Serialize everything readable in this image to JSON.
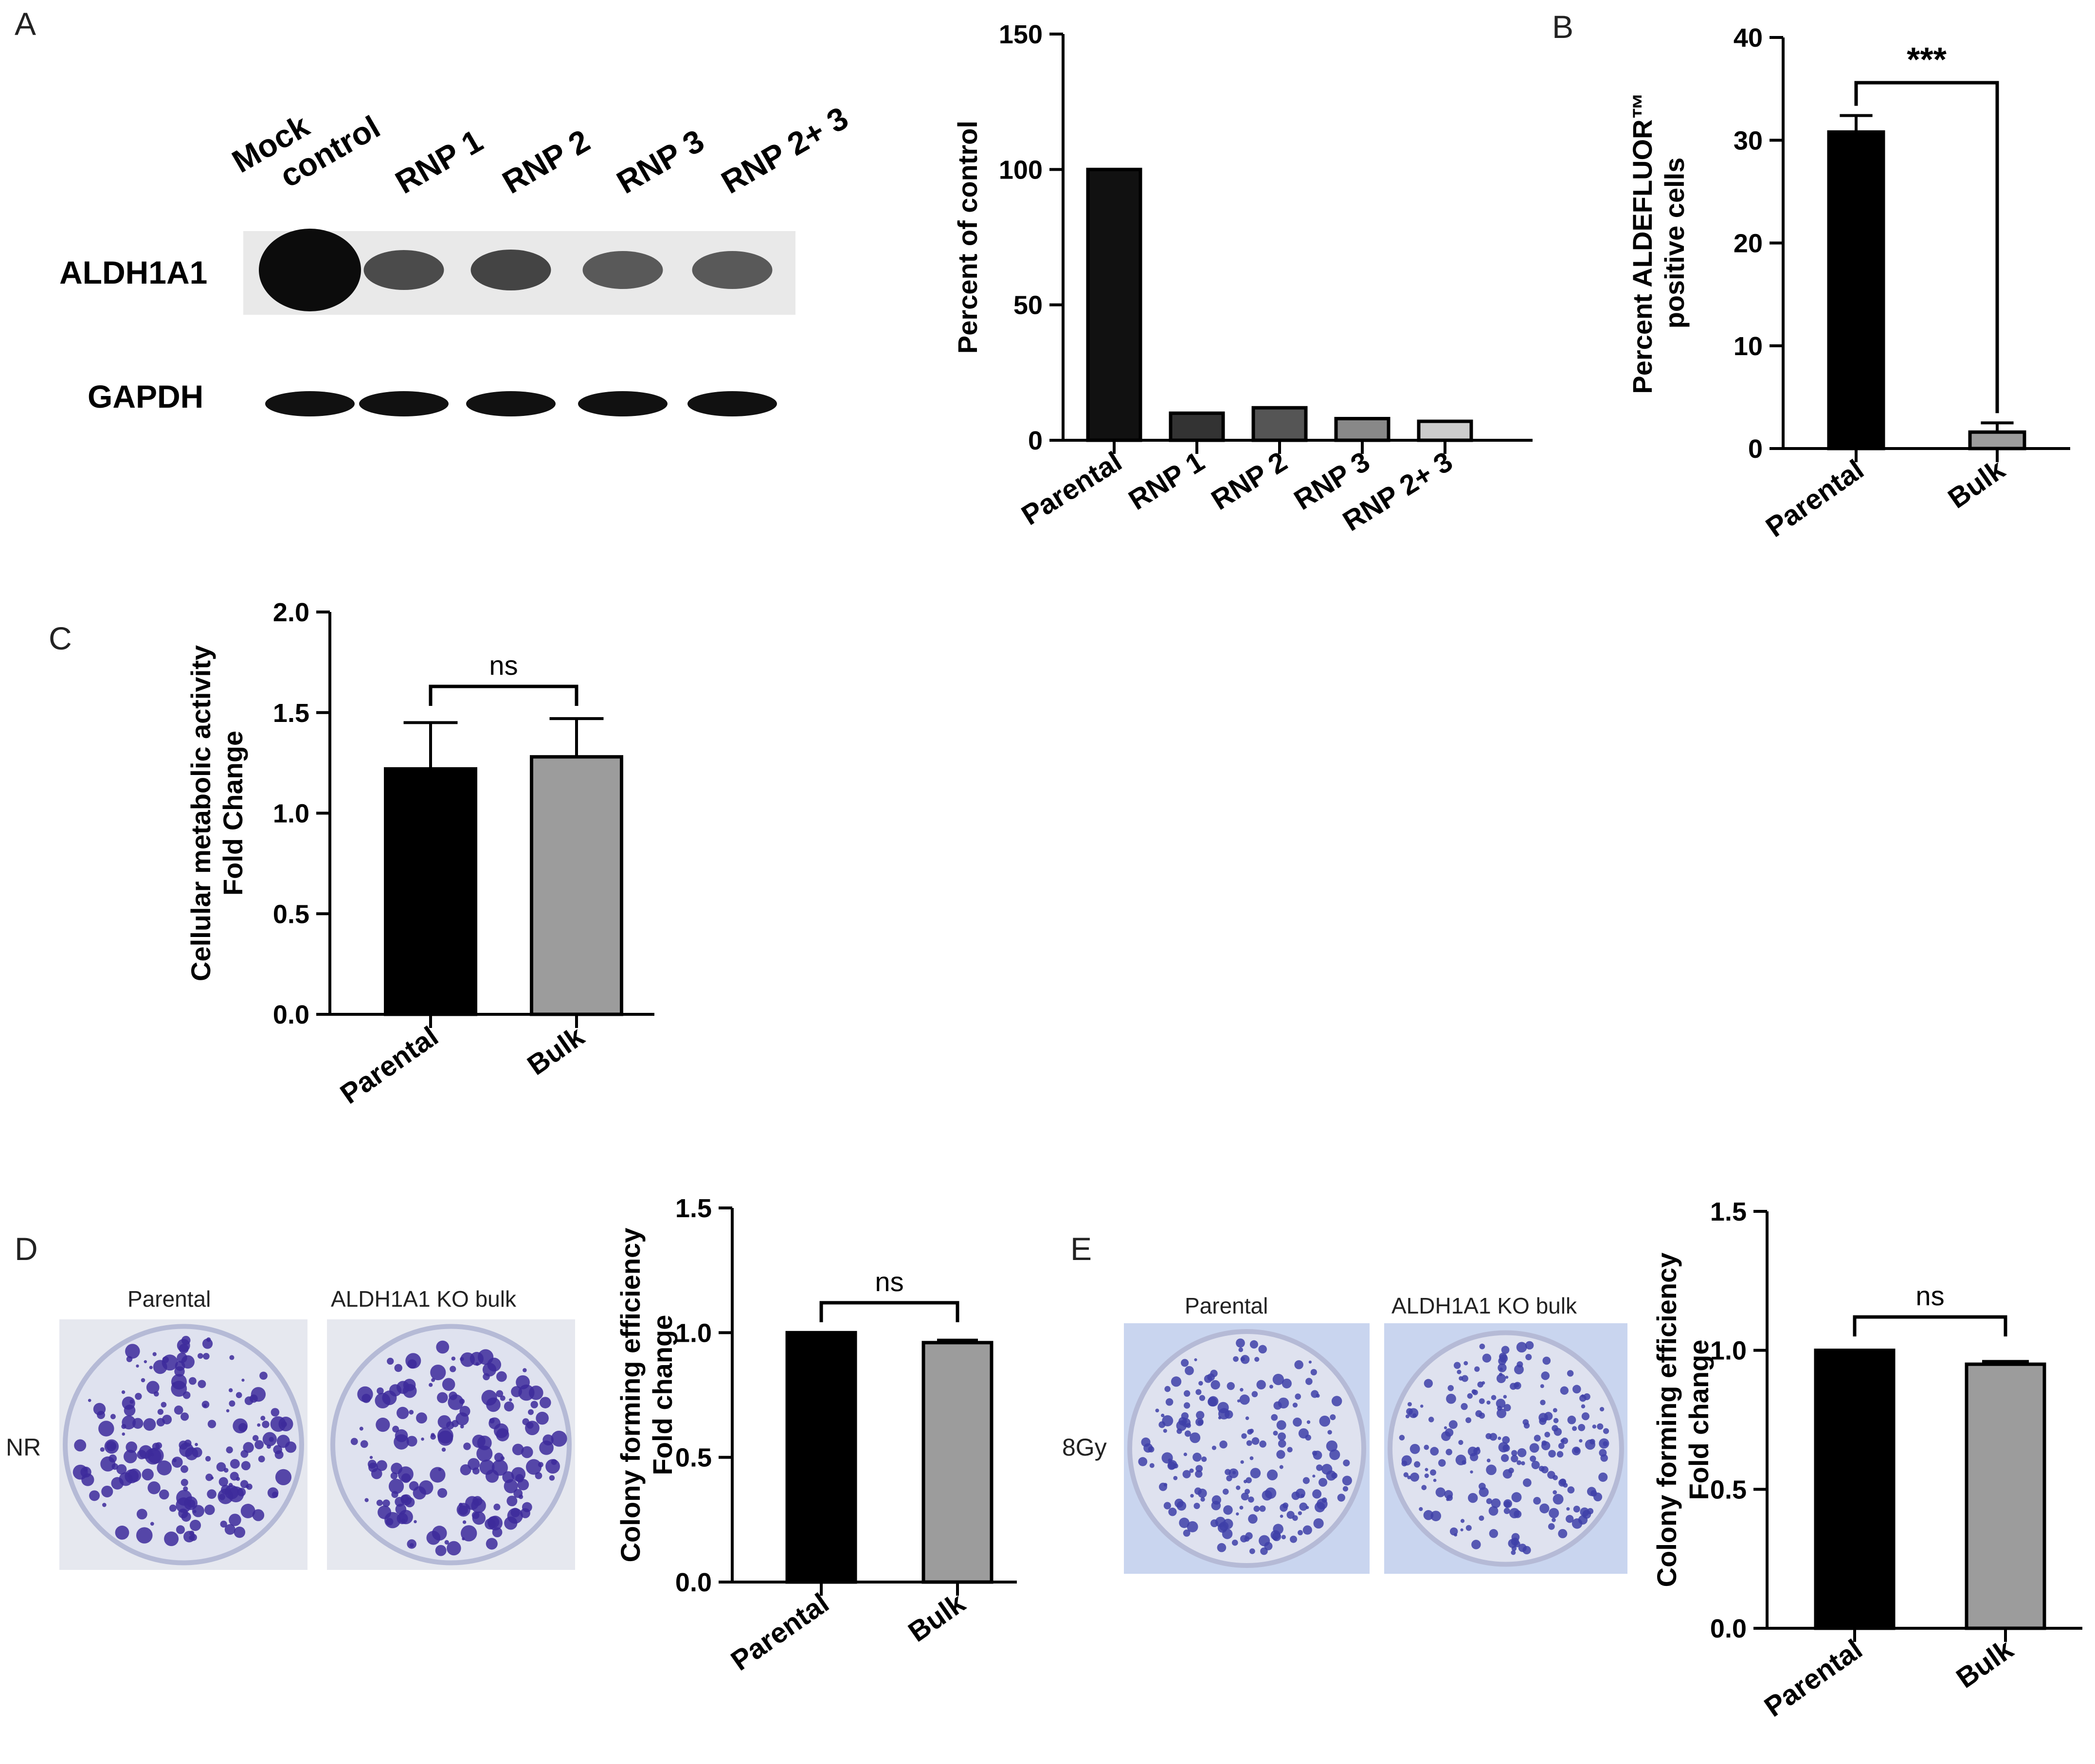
{
  "panels": {
    "A": "A",
    "B": "B",
    "C": "C",
    "D": "D",
    "E": "E"
  },
  "blot": {
    "lanes": [
      "Mock\ncontrol",
      "RNP 1",
      "RNP 2",
      "RNP 3",
      "RNP 2+ 3"
    ],
    "rows": [
      "ALDH1A1",
      "GAPDH"
    ],
    "aldh_intensity": [
      1.0,
      0.55,
      0.6,
      0.45,
      0.45
    ]
  },
  "colony": {
    "nr_label": "NR",
    "gy_label": "8Gy",
    "plate_labels": [
      "Parental",
      "ALDH1A1 KO bulk"
    ]
  },
  "chart_data": [
    {
      "id": "A-quant",
      "type": "bar",
      "categories": [
        "Parental",
        "RNP 1",
        "RNP 2",
        "RNP 3",
        "RNP 2+ 3"
      ],
      "values": [
        100,
        10,
        12,
        8,
        7
      ],
      "colors": [
        "#111111",
        "#333333",
        "#555555",
        "#888888",
        "#cccccc"
      ],
      "ylabel": "Percent of control",
      "ylim": [
        0,
        150
      ],
      "yticks": [
        0,
        50,
        100,
        150
      ],
      "sig": ""
    },
    {
      "id": "B",
      "type": "bar",
      "categories": [
        "Parental",
        "Bulk"
      ],
      "values": [
        30.8,
        1.6
      ],
      "errors": [
        1.6,
        0.9
      ],
      "colors": [
        "#000000",
        "#9c9c9c"
      ],
      "ylabel": [
        "Percent ALDEFLUOR™",
        "positive cells"
      ],
      "ylim": [
        0,
        40
      ],
      "yticks": [
        0,
        10,
        20,
        30,
        40
      ],
      "sig": "***"
    },
    {
      "id": "C",
      "type": "bar",
      "categories": [
        "Parental",
        "Bulk"
      ],
      "values": [
        1.22,
        1.28
      ],
      "errors": [
        0.23,
        0.19
      ],
      "colors": [
        "#000000",
        "#9c9c9c"
      ],
      "ylabel": [
        "Cellular metabolic activity",
        "Fold Change"
      ],
      "ylim": [
        0,
        2.0
      ],
      "yticks": [
        "0.0",
        "0.5",
        "1.0",
        "1.5",
        "2.0"
      ],
      "sig": "ns"
    },
    {
      "id": "D",
      "type": "bar",
      "categories": [
        "Parental",
        "Bulk"
      ],
      "values": [
        1.0,
        0.96
      ],
      "errors": [
        0,
        0.01
      ],
      "colors": [
        "#000000",
        "#9c9c9c"
      ],
      "ylabel": [
        "Colony forming efficiency",
        "Fold change"
      ],
      "ylim": [
        0,
        1.5
      ],
      "yticks": [
        "0.0",
        "0.5",
        "1.0",
        "1.5"
      ],
      "sig": "ns"
    },
    {
      "id": "E",
      "type": "bar",
      "categories": [
        "Parental",
        "Bulk"
      ],
      "values": [
        1.0,
        0.95
      ],
      "errors": [
        0,
        0.01
      ],
      "colors": [
        "#000000",
        "#9c9c9c"
      ],
      "ylabel": [
        "Colony forming efficiency",
        "Fold change"
      ],
      "ylim": [
        0,
        1.5
      ],
      "yticks": [
        "0.0",
        "0.5",
        "1.0",
        "1.5"
      ],
      "sig": "ns"
    }
  ]
}
